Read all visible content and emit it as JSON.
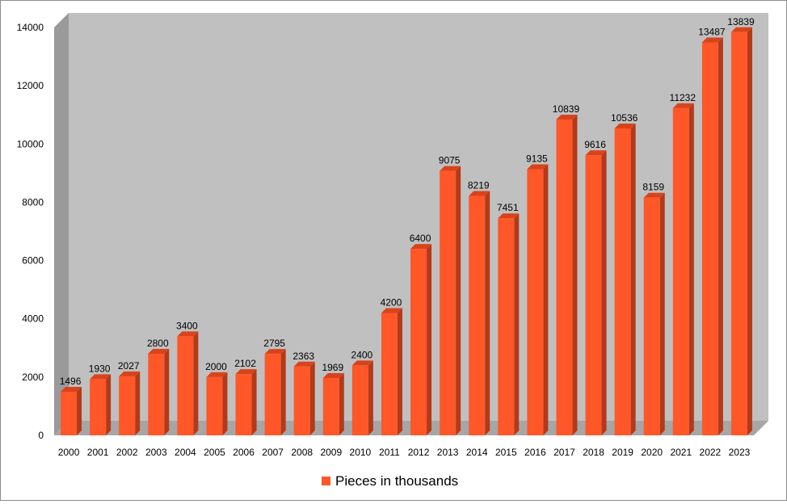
{
  "chart_data": {
    "type": "bar",
    "title": "",
    "xlabel": "",
    "ylabel": "",
    "categories": [
      "2000",
      "2001",
      "2002",
      "2003",
      "2004",
      "2005",
      "2006",
      "2007",
      "2008",
      "2009",
      "2010",
      "2011",
      "2012",
      "2013",
      "2014",
      "2015",
      "2016",
      "2017",
      "2018",
      "2019",
      "2020",
      "2021",
      "2022",
      "2023"
    ],
    "series": [
      {
        "name": "Pieces in thousands",
        "color": "#FF5728",
        "values": [
          1496,
          1930,
          2027,
          2800,
          3400,
          2000,
          2102,
          2795,
          2363,
          1969,
          2400,
          4200,
          6400,
          9075,
          8219,
          7451,
          9135,
          10839,
          9616,
          10536,
          8159,
          11232,
          13487,
          13839
        ]
      }
    ],
    "ylim": [
      0,
      14000
    ],
    "yticks": [
      0,
      2000,
      4000,
      6000,
      8000,
      10000,
      12000,
      14000
    ],
    "grid": false,
    "legend_position": "bottom",
    "style": "3d-column",
    "plot_background": "#C0C0C0"
  }
}
